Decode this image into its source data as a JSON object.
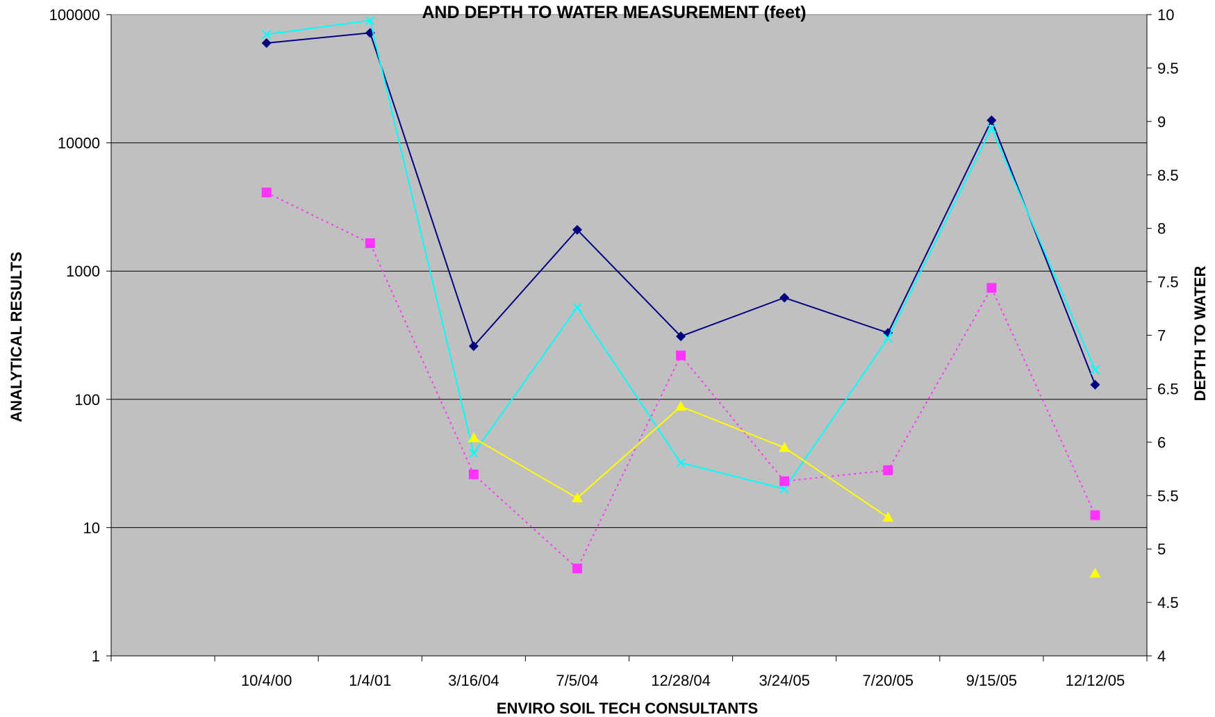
{
  "chart_data": {
    "type": "line",
    "title": "AND DEPTH TO WATER MEASUREMENT (feet)",
    "xlabel": "ENVIRO SOIL TECH CONSULTANTS",
    "ylabel": "ANALYTICAL RESULTS",
    "y2label": "DEPTH TO WATER",
    "categories": [
      "",
      "10/4/00",
      "1/4/01",
      "3/16/04",
      "7/5/04",
      "12/28/04",
      "3/24/05",
      "7/20/05",
      "9/15/05",
      "12/12/05"
    ],
    "y_scale": "log",
    "ylim": [
      1,
      100000
    ],
    "y_ticks": [
      1,
      10,
      100,
      1000,
      10000,
      100000
    ],
    "y2lim": [
      4,
      10
    ],
    "y2_ticks": [
      4,
      4.5,
      5,
      5.5,
      6,
      6.5,
      7,
      7.5,
      8,
      8.5,
      9,
      9.5,
      10
    ],
    "grid": "horizontal major lines at y ticks",
    "plot_background": "#c0c0c0",
    "legend": "none",
    "series": [
      {
        "color": "#000080",
        "marker": "diamond",
        "line": "solid",
        "values": [
          null,
          60000,
          72000,
          260,
          2100,
          310,
          620,
          330,
          15000,
          130
        ]
      },
      {
        "color": "#00ffff",
        "marker": "x",
        "line": "solid",
        "values": [
          null,
          70000,
          90000,
          38,
          520,
          32,
          20,
          300,
          13000,
          170
        ]
      },
      {
        "color": "#ff33ff",
        "marker": "square",
        "line": "dotted",
        "values": [
          null,
          4100,
          1650,
          26,
          4.8,
          220,
          23,
          28,
          740,
          12.5
        ]
      },
      {
        "color": "#ffff00",
        "marker": "triangle",
        "line": "solid",
        "values": [
          null,
          null,
          null,
          50,
          17,
          88,
          42,
          12,
          null,
          4.4
        ]
      }
    ]
  }
}
